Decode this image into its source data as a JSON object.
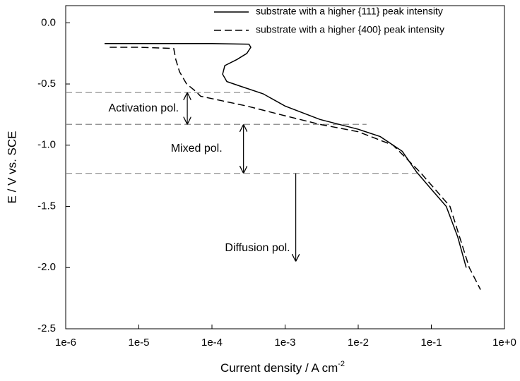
{
  "chart_data": {
    "type": "line",
    "xlabel": "Current density / A cm",
    "xlabel_sup": "-2",
    "ylabel": "E / V vs. SCE",
    "xscale": "log",
    "xlim": [
      1e-06,
      1
    ],
    "ylim": [
      -2.5,
      0.14
    ],
    "xticks": [
      {
        "value": 1e-06,
        "label": "1e-6"
      },
      {
        "value": 1e-05,
        "label": "1e-5"
      },
      {
        "value": 0.0001,
        "label": "1e-4"
      },
      {
        "value": 0.001,
        "label": "1e-3"
      },
      {
        "value": 0.01,
        "label": "1e-2"
      },
      {
        "value": 0.1,
        "label": "1e-1"
      },
      {
        "value": 1,
        "label": "1e+0"
      }
    ],
    "yticks": [
      {
        "value": 0,
        "label": "0.0"
      },
      -0.5,
      {
        "value": -1,
        "label": "-1.0"
      },
      -1.5,
      {
        "value": -2,
        "label": "-2.0"
      },
      -2.5
    ],
    "legend": "upper right",
    "series": [
      {
        "name": "substrate  with a higher {111} peak intensity",
        "color": "#000000",
        "linestyle": "solid",
        "x": [
          3.4e-06,
          1e-05,
          0.0001,
          0.00032,
          0.00034,
          0.0003,
          0.00022,
          0.00015,
          0.00014,
          0.00016,
          0.00025,
          0.0005,
          0.001,
          0.003,
          0.01,
          0.02,
          0.04,
          0.063,
          0.1,
          0.16,
          0.23,
          0.3
        ],
        "values": [
          -0.17,
          -0.17,
          -0.17,
          -0.175,
          -0.2,
          -0.25,
          -0.3,
          -0.35,
          -0.42,
          -0.48,
          -0.52,
          -0.58,
          -0.68,
          -0.79,
          -0.87,
          -0.93,
          -1.05,
          -1.22,
          -1.36,
          -1.5,
          -1.75,
          -2.0
        ]
      },
      {
        "name": "substrate  with a higher {400} peak intensity",
        "color": "#000000",
        "linestyle": "dashed",
        "x": [
          4e-06,
          1e-05,
          3e-05,
          3.2e-05,
          3.6e-05,
          4.5e-05,
          6e-05,
          7e-05,
          0.0001,
          0.0003,
          0.001,
          0.003,
          0.01,
          0.03,
          0.07,
          0.18,
          0.33,
          0.47
        ],
        "values": [
          -0.2,
          -0.2,
          -0.21,
          -0.3,
          -0.4,
          -0.5,
          -0.56,
          -0.6,
          -0.62,
          -0.68,
          -0.76,
          -0.83,
          -0.89,
          -1.0,
          -1.22,
          -1.5,
          -2.0,
          -2.18
        ]
      }
    ],
    "hlines": [
      {
        "y": -0.57,
        "xmax": 0.00035
      },
      {
        "y": -0.83,
        "xmax": 0.013
      },
      {
        "y": -1.23,
        "xmax": 0.065
      }
    ],
    "annotations": [
      {
        "text": "Activation pol.",
        "x": 4.6e-05,
        "y1": -0.57,
        "y2": -0.83,
        "arrow": "double"
      },
      {
        "text": "Mixed pol.",
        "x": 0.00027,
        "y1": -0.83,
        "y2": -1.23,
        "arrow": "double"
      },
      {
        "text": "Diffusion pol.",
        "x": 0.0014,
        "y1": -1.23,
        "y2": -1.95,
        "arrow": "single"
      }
    ]
  }
}
